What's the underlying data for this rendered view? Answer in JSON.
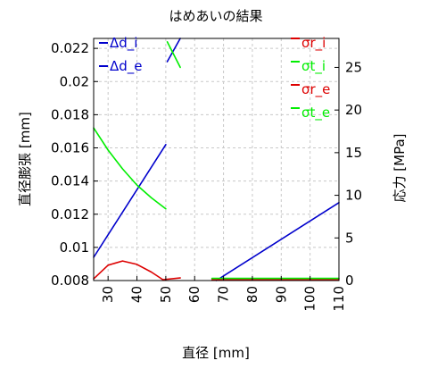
{
  "chart_data": {
    "type": "line",
    "title": "はめあいの結果",
    "xlabel": "直径 [mm]",
    "ylabel_left": "直径膨張 [mm]",
    "ylabel_right": "応力 [MPa]",
    "xlim": [
      25,
      110
    ],
    "ylim_left": [
      0.008,
      0.0226
    ],
    "ylim_right": [
      0,
      28.4
    ],
    "x_ticks": [
      30,
      40,
      50,
      60,
      70,
      80,
      90,
      100,
      110
    ],
    "x_tick_labels": [
      "30",
      "40",
      "50",
      "60",
      "70",
      "80",
      "90",
      "100",
      "110"
    ],
    "y_left_ticks": [
      0.008,
      0.01,
      0.012,
      0.014,
      0.016,
      0.018,
      0.02,
      0.022
    ],
    "y_left_tick_labels": [
      "0.008",
      "0.01",
      "0.012",
      "0.014",
      "0.016",
      "0.018",
      "0.02",
      "0.022"
    ],
    "y_right_ticks": [
      0,
      5,
      10,
      15,
      20,
      25
    ],
    "y_right_tick_labels": [
      "0",
      "5",
      "10",
      "15",
      "20",
      "25"
    ],
    "grid": true,
    "legend_left_position": "top-left",
    "legend_right_position": "top-right",
    "series": [
      {
        "name": "Δd_i",
        "axis": "left",
        "color": "#0000cc",
        "segments": [
          [
            [
              55,
              0.0226
            ],
            [
              50.5,
              0.0212
            ]
          ]
        ]
      },
      {
        "name": "Δd_e",
        "axis": "left",
        "color": "#0000cc",
        "segments": [
          [
            [
              25,
              0.0094
            ],
            [
              50,
              0.0162
            ]
          ],
          [
            [
              67.5,
              0.008
            ],
            [
              110,
              0.0127
            ]
          ]
        ]
      },
      {
        "name": "σr_i",
        "axis": "right",
        "color": "#dd0000",
        "segments": [
          [
            [
              25,
              0.2
            ],
            [
              30,
              1.8
            ],
            [
              35,
              2.3
            ],
            [
              40,
              1.9
            ],
            [
              45,
              1.0
            ],
            [
              49,
              0.1
            ]
          ],
          [
            [
              49,
              0.1
            ],
            [
              55,
              0.3
            ]
          ]
        ]
      },
      {
        "name": "σt_i",
        "axis": "right",
        "color": "#00ee00",
        "segments": [
          [
            [
              50.5,
              28.0
            ],
            [
              55,
              25.0
            ]
          ]
        ]
      },
      {
        "name": "σr_e",
        "axis": "right",
        "color": "#dd0000",
        "segments": [
          [
            [
              66,
              0.1
            ],
            [
              110,
              0.1
            ]
          ]
        ]
      },
      {
        "name": "σt_e",
        "axis": "right",
        "color": "#00ee00",
        "segments": [
          [
            [
              25,
              17.9
            ],
            [
              30,
              15.3
            ],
            [
              35,
              13.1
            ],
            [
              40,
              11.2
            ],
            [
              45,
              9.7
            ],
            [
              50,
              8.4
            ]
          ],
          [
            [
              66,
              0.25
            ],
            [
              110,
              0.25
            ]
          ]
        ]
      }
    ],
    "legend_left": [
      {
        "label": "Δd_i",
        "color": "#0000cc"
      },
      {
        "label": "Δd_e",
        "color": "#0000cc"
      }
    ],
    "legend_right": [
      {
        "label": "σr_i",
        "color": "#dd0000"
      },
      {
        "label": "σt_i",
        "color": "#00ee00"
      },
      {
        "label": "σr_e",
        "color": "#dd0000"
      },
      {
        "label": "σt_e",
        "color": "#00ee00"
      }
    ]
  }
}
